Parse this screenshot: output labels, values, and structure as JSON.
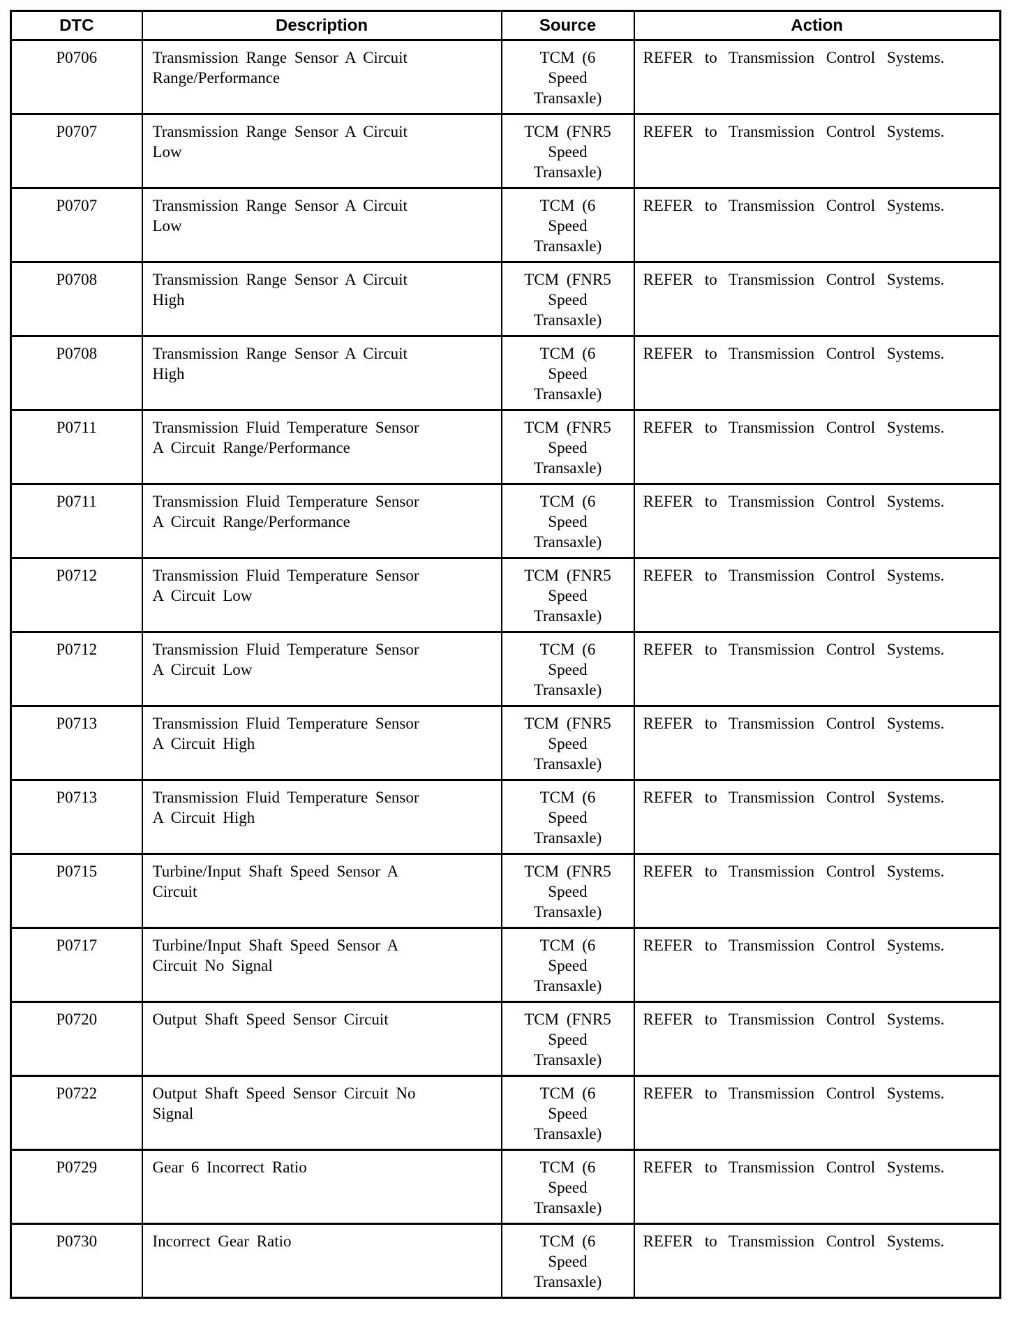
{
  "colors": {
    "text": "#000000",
    "border": "#000000",
    "background": "#ffffff"
  },
  "table": {
    "headers": {
      "dtc": "DTC",
      "description": "Description",
      "source": "Source",
      "action": "Action"
    },
    "rows": [
      {
        "dtc": "P0706",
        "description": "Transmission Range Sensor A Circuit\nRange/Performance",
        "source": "TCM (6\nSpeed\nTransaxle)",
        "action": "REFER to Transmission Control Systems."
      },
      {
        "dtc": "P0707",
        "description": "Transmission Range Sensor A Circuit\nLow",
        "source": "TCM (FNR5\nSpeed\nTransaxle)",
        "action": "REFER to Transmission Control Systems."
      },
      {
        "dtc": "P0707",
        "description": "Transmission Range Sensor A Circuit\nLow",
        "source": "TCM (6\nSpeed\nTransaxle)",
        "action": "REFER to Transmission Control Systems."
      },
      {
        "dtc": "P0708",
        "description": "Transmission Range Sensor A Circuit\nHigh",
        "source": "TCM (FNR5\nSpeed\nTransaxle)",
        "action": "REFER to Transmission Control Systems."
      },
      {
        "dtc": "P0708",
        "description": "Transmission Range Sensor A Circuit\nHigh",
        "source": "TCM (6\nSpeed\nTransaxle)",
        "action": "REFER to Transmission Control Systems."
      },
      {
        "dtc": "P0711",
        "description": "Transmission Fluid Temperature Sensor\nA Circuit Range/Performance",
        "source": "TCM (FNR5\nSpeed\nTransaxle)",
        "action": "REFER to Transmission Control Systems."
      },
      {
        "dtc": "P0711",
        "description": "Transmission Fluid Temperature Sensor\nA Circuit Range/Performance",
        "source": "TCM (6\nSpeed\nTransaxle)",
        "action": "REFER to Transmission Control Systems."
      },
      {
        "dtc": "P0712",
        "description": "Transmission Fluid Temperature Sensor\nA Circuit Low",
        "source": "TCM (FNR5\nSpeed\nTransaxle)",
        "action": "REFER to Transmission Control Systems."
      },
      {
        "dtc": "P0712",
        "description": "Transmission Fluid Temperature Sensor\nA Circuit Low",
        "source": "TCM (6\nSpeed\nTransaxle)",
        "action": "REFER to Transmission Control Systems."
      },
      {
        "dtc": "P0713",
        "description": "Transmission Fluid Temperature Sensor\nA Circuit High",
        "source": "TCM (FNR5\nSpeed\nTransaxle)",
        "action": "REFER to Transmission Control Systems."
      },
      {
        "dtc": "P0713",
        "description": "Transmission Fluid Temperature Sensor\nA Circuit High",
        "source": "TCM (6\nSpeed\nTransaxle)",
        "action": "REFER to Transmission Control Systems."
      },
      {
        "dtc": "P0715",
        "description": "Turbine/Input Shaft Speed Sensor A\nCircuit",
        "source": "TCM (FNR5\nSpeed\nTransaxle)",
        "action": "REFER to Transmission Control Systems."
      },
      {
        "dtc": "P0717",
        "description": "Turbine/Input Shaft Speed Sensor A\nCircuit No Signal",
        "source": "TCM (6\nSpeed\nTransaxle)",
        "action": "REFER to Transmission Control Systems."
      },
      {
        "dtc": "P0720",
        "description": "Output Shaft Speed Sensor Circuit",
        "source": "TCM (FNR5\nSpeed\nTransaxle)",
        "action": "REFER to Transmission Control Systems."
      },
      {
        "dtc": "P0722",
        "description": "Output Shaft Speed Sensor Circuit No\nSignal",
        "source": "TCM (6\nSpeed\nTransaxle)",
        "action": "REFER to Transmission Control Systems."
      },
      {
        "dtc": "P0729",
        "description": "Gear 6 Incorrect Ratio",
        "source": "TCM (6\nSpeed\nTransaxle)",
        "action": "REFER to Transmission Control Systems."
      },
      {
        "dtc": "P0730",
        "description": "Incorrect Gear Ratio",
        "source": "TCM (6\nSpeed\nTransaxle)",
        "action": "REFER to Transmission Control Systems."
      }
    ]
  }
}
